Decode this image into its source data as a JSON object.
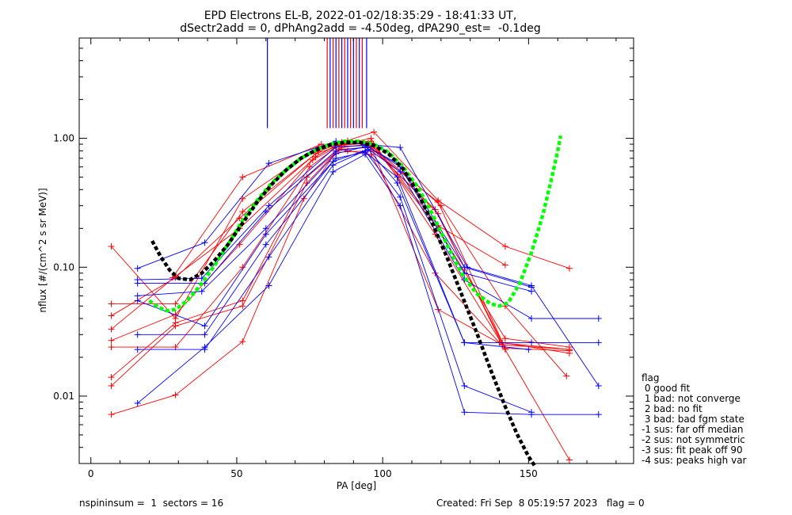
{
  "chart_data": {
    "type": "scatter",
    "title": "EPD Electrons EL-B, 2022-01-02/18:35:29 - 18:41:33 UT,",
    "subtitle": "dSectr2add = 0, dPhAng2add = -4.50deg, dPA290_est=  -0.1deg",
    "xlabel": "PA [deg]",
    "ylabel": "nflux [#/(cm^2 s sr MeV)]",
    "xlim": [
      -4,
      186
    ],
    "ylim": [
      0.003,
      6.0
    ],
    "yscale": "log",
    "x_ticks": [
      0,
      50,
      100,
      150
    ],
    "y_ticks": [
      {
        "value": 0.01,
        "label": "0.01"
      },
      {
        "value": 0.1,
        "label": "0.10"
      },
      {
        "value": 1.0,
        "label": "1.00"
      }
    ],
    "colors": {
      "red": "#ff0000",
      "blue": "#0000ff",
      "green": "#00ff00",
      "black": "#000000"
    },
    "series": [
      {
        "color": "#ff0000",
        "points": [
          [
            7,
            0.0072
          ],
          [
            29,
            0.0102
          ],
          [
            52,
            0.0265
          ],
          [
            73,
            0.34
          ],
          [
            84,
            0.78
          ],
          [
            97,
            0.8
          ],
          [
            119,
            0.32
          ],
          [
            142,
            0.0235
          ],
          [
            164,
            0.0225
          ]
        ]
      },
      {
        "color": "#ff0000",
        "points": [
          [
            7,
            0.012
          ],
          [
            29,
            0.035
          ],
          [
            52,
            0.05
          ],
          [
            74,
            0.45
          ],
          [
            85,
            0.82
          ],
          [
            96,
            0.85
          ],
          [
            118,
            0.28
          ],
          [
            141,
            0.026
          ],
          [
            164,
            0.0215
          ]
        ]
      },
      {
        "color": "#ff0000",
        "points": [
          [
            7,
            0.014
          ],
          [
            29,
            0.037
          ],
          [
            52,
            0.055
          ],
          [
            74,
            0.5
          ],
          [
            86,
            0.85
          ],
          [
            95,
            0.9
          ],
          [
            119,
            0.26
          ],
          [
            141,
            0.025
          ],
          [
            164,
            0.023
          ]
        ]
      },
      {
        "color": "#ff0000",
        "points": [
          [
            7,
            0.024
          ],
          [
            29,
            0.024
          ],
          [
            52,
            0.1
          ],
          [
            75,
            0.6
          ],
          [
            85,
            0.88
          ],
          [
            96,
            0.92
          ],
          [
            119,
            0.2
          ],
          [
            142,
            0.028
          ],
          [
            164,
            0.024
          ]
        ]
      },
      {
        "color": "#ff0000",
        "points": [
          [
            7,
            0.027
          ],
          [
            29,
            0.043
          ],
          [
            51,
            0.15
          ],
          [
            76,
            0.68
          ],
          [
            86,
            0.9
          ],
          [
            96,
            1.0
          ],
          [
            118,
            0.18
          ],
          [
            142,
            0.023
          ]
        ]
      },
      {
        "color": "#ff0000",
        "points": [
          [
            7,
            0.033
          ],
          [
            29,
            0.085
          ],
          [
            51,
            0.2
          ],
          [
            77,
            0.72
          ],
          [
            86,
            0.93
          ],
          [
            97,
            1.12
          ],
          [
            119,
            0.33
          ],
          [
            142,
            0.145
          ],
          [
            164,
            0.098
          ]
        ]
      },
      {
        "color": "#ff0000",
        "points": [
          [
            7,
            0.042
          ],
          [
            29,
            0.083
          ],
          [
            51,
            0.24
          ],
          [
            77,
            0.76
          ],
          [
            87,
            0.9
          ],
          [
            95,
            0.92
          ],
          [
            120,
            0.3
          ],
          [
            142,
            0.05
          ],
          [
            163,
            0.0143
          ]
        ]
      },
      {
        "color": "#ff0000",
        "points": [
          [
            7,
            0.052
          ],
          [
            29,
            0.052
          ],
          [
            52,
            0.27
          ],
          [
            78,
            0.79
          ],
          [
            86,
            0.93
          ],
          [
            96,
            0.95
          ],
          [
            119,
            0.21
          ],
          [
            142,
            0.104
          ]
        ]
      },
      {
        "color": "#ff0000",
        "points": [
          [
            7,
            0.145
          ],
          [
            29,
            0.04
          ],
          [
            52,
            0.34
          ],
          [
            78,
            0.86
          ],
          [
            88,
            0.96
          ],
          [
            96,
            0.88
          ],
          [
            119,
            0.047
          ],
          [
            141,
            0.025
          ],
          [
            164,
            0.0032
          ]
        ]
      },
      {
        "color": "#ff0000",
        "points": [
          [
            28,
            0.083
          ],
          [
            52,
            0.5
          ],
          [
            79,
            0.9
          ],
          [
            88,
            0.8
          ],
          [
            96,
            0.75
          ],
          [
            118,
            0.09
          ],
          [
            140,
            0.026
          ],
          [
            164,
            0.023
          ]
        ]
      },
      {
        "color": "#0000ff",
        "points": [
          [
            16,
            0.0088
          ],
          [
            39,
            0.024
          ],
          [
            61,
            0.072
          ],
          [
            83,
            0.55
          ],
          [
            94,
            0.75
          ],
          [
            106,
            0.3
          ],
          [
            128,
            0.0075
          ],
          [
            151,
            0.0072
          ],
          [
            174,
            0.0072
          ]
        ]
      },
      {
        "color": "#0000ff",
        "points": [
          [
            16,
            0.023
          ],
          [
            39,
            0.023
          ],
          [
            61,
            0.12
          ],
          [
            83,
            0.62
          ],
          [
            94,
            0.8
          ],
          [
            106,
            0.35
          ],
          [
            128,
            0.012
          ],
          [
            151,
            0.0075
          ]
        ]
      },
      {
        "color": "#0000ff",
        "points": [
          [
            16,
            0.03
          ],
          [
            39,
            0.03
          ],
          [
            60,
            0.15
          ],
          [
            83,
            0.66
          ],
          [
            95,
            0.82
          ],
          [
            105,
            0.45
          ],
          [
            128,
            0.026
          ],
          [
            151,
            0.026
          ],
          [
            174,
            0.026
          ]
        ]
      },
      {
        "color": "#0000ff",
        "points": [
          [
            16,
            0.055
          ],
          [
            39,
            0.035
          ],
          [
            60,
            0.18
          ],
          [
            84,
            0.7
          ],
          [
            94,
            0.78
          ],
          [
            105,
            0.5
          ],
          [
            128,
            0.026
          ],
          [
            150,
            0.023
          ]
        ]
      },
      {
        "color": "#0000ff",
        "points": [
          [
            16,
            0.06
          ],
          [
            38,
            0.065
          ],
          [
            60,
            0.2
          ],
          [
            84,
            0.76
          ],
          [
            94,
            0.86
          ],
          [
            106,
            0.55
          ],
          [
            128,
            0.08
          ],
          [
            151,
            0.04
          ],
          [
            174,
            0.04
          ]
        ]
      },
      {
        "color": "#0000ff",
        "points": [
          [
            16,
            0.075
          ],
          [
            39,
            0.075
          ],
          [
            60,
            0.27
          ],
          [
            84,
            0.8
          ],
          [
            95,
            0.86
          ],
          [
            106,
            0.6
          ],
          [
            128,
            0.09
          ],
          [
            151,
            0.065
          ]
        ]
      },
      {
        "color": "#0000ff",
        "points": [
          [
            16,
            0.08
          ],
          [
            38,
            0.082
          ],
          [
            61,
            0.3
          ],
          [
            84,
            0.86
          ],
          [
            94,
            0.88
          ],
          [
            106,
            0.62
          ],
          [
            128,
            0.1
          ],
          [
            151,
            0.07
          ]
        ]
      },
      {
        "color": "#0000ff",
        "points": [
          [
            16,
            0.098
          ],
          [
            39,
            0.155
          ],
          [
            61,
            0.64
          ],
          [
            84,
            0.95
          ],
          [
            94,
            0.9
          ],
          [
            106,
            0.85
          ],
          [
            129,
            0.1
          ],
          [
            151,
            0.072
          ],
          [
            174,
            0.012
          ]
        ]
      }
    ],
    "fit_curves": [
      {
        "color": "#00ff00",
        "style": "dashed",
        "points": [
          [
            20,
            0.055
          ],
          [
            23,
            0.049
          ],
          [
            26,
            0.046
          ],
          [
            29,
            0.047
          ],
          [
            33,
            0.055
          ],
          [
            37,
            0.07
          ],
          [
            42,
            0.1
          ],
          [
            47,
            0.15
          ],
          [
            52,
            0.23
          ],
          [
            57,
            0.33
          ],
          [
            62,
            0.45
          ],
          [
            67,
            0.57
          ],
          [
            72,
            0.7
          ],
          [
            77,
            0.81
          ],
          [
            82,
            0.9
          ],
          [
            87,
            0.95
          ],
          [
            92,
            0.95
          ],
          [
            97,
            0.9
          ],
          [
            102,
            0.78
          ],
          [
            107,
            0.6
          ],
          [
            112,
            0.42
          ],
          [
            117,
            0.26
          ],
          [
            122,
            0.15
          ],
          [
            127,
            0.09
          ],
          [
            132,
            0.063
          ],
          [
            137,
            0.052
          ],
          [
            140,
            0.05
          ],
          [
            143,
            0.053
          ],
          [
            147,
            0.075
          ],
          [
            151,
            0.13
          ],
          [
            155,
            0.26
          ],
          [
            158,
            0.5
          ],
          [
            160,
            0.8
          ],
          [
            161,
            1.05
          ]
        ]
      },
      {
        "color": "#000000",
        "style": "dashed",
        "points": [
          [
            21,
            0.16
          ],
          [
            24,
            0.12
          ],
          [
            27,
            0.095
          ],
          [
            30,
            0.082
          ],
          [
            34,
            0.08
          ],
          [
            38,
            0.09
          ],
          [
            42,
            0.11
          ],
          [
            47,
            0.15
          ],
          [
            52,
            0.22
          ],
          [
            57,
            0.32
          ],
          [
            62,
            0.44
          ],
          [
            67,
            0.57
          ],
          [
            72,
            0.7
          ],
          [
            77,
            0.81
          ],
          [
            82,
            0.89
          ],
          [
            87,
            0.93
          ],
          [
            92,
            0.93
          ],
          [
            97,
            0.88
          ],
          [
            102,
            0.76
          ],
          [
            107,
            0.58
          ],
          [
            112,
            0.38
          ],
          [
            117,
            0.22
          ],
          [
            122,
            0.12
          ],
          [
            127,
            0.062
          ],
          [
            132,
            0.032
          ],
          [
            137,
            0.016
          ],
          [
            142,
            0.0083
          ],
          [
            146,
            0.0051
          ],
          [
            150,
            0.0034
          ],
          [
            152,
            0.0029
          ]
        ]
      }
    ],
    "vertical_lines": [
      {
        "x": 60.5,
        "color": "#0000ff"
      },
      {
        "x": 81,
        "color": "#ff0000"
      },
      {
        "x": 82,
        "color": "#0000ff"
      },
      {
        "x": 83,
        "color": "#ff0000"
      },
      {
        "x": 84,
        "color": "#0000ff"
      },
      {
        "x": 85,
        "color": "#ff0000"
      },
      {
        "x": 86,
        "color": "#0000ff"
      },
      {
        "x": 87,
        "color": "#ff0000"
      },
      {
        "x": 88,
        "color": "#0000ff"
      },
      {
        "x": 89,
        "color": "#ff0000"
      },
      {
        "x": 90,
        "color": "#0000ff"
      },
      {
        "x": 91,
        "color": "#ff0000"
      },
      {
        "x": 92,
        "color": "#0000ff"
      },
      {
        "x": 93,
        "color": "#ff0000"
      },
      {
        "x": 94.5,
        "color": "#0000ff"
      }
    ],
    "vertical_line_range": [
      1.2,
      6.0
    ],
    "legend": {
      "placement": "right-bottom",
      "entries": [
        "flag",
        " 0 good fit",
        " 1 bad: not converge",
        " 2 bad: no fit",
        " 3 bad: bad fgm state",
        "-1 sus: far off median",
        "-2 sus: not symmetric",
        "-3 sus: fit peak off 90",
        "-4 sus: peaks high var"
      ]
    },
    "footer": {
      "left": "nspininsum =  1  sectors = 16",
      "right": "Created: Fri Sep  8 05:19:57 2023   flag = 0"
    }
  }
}
